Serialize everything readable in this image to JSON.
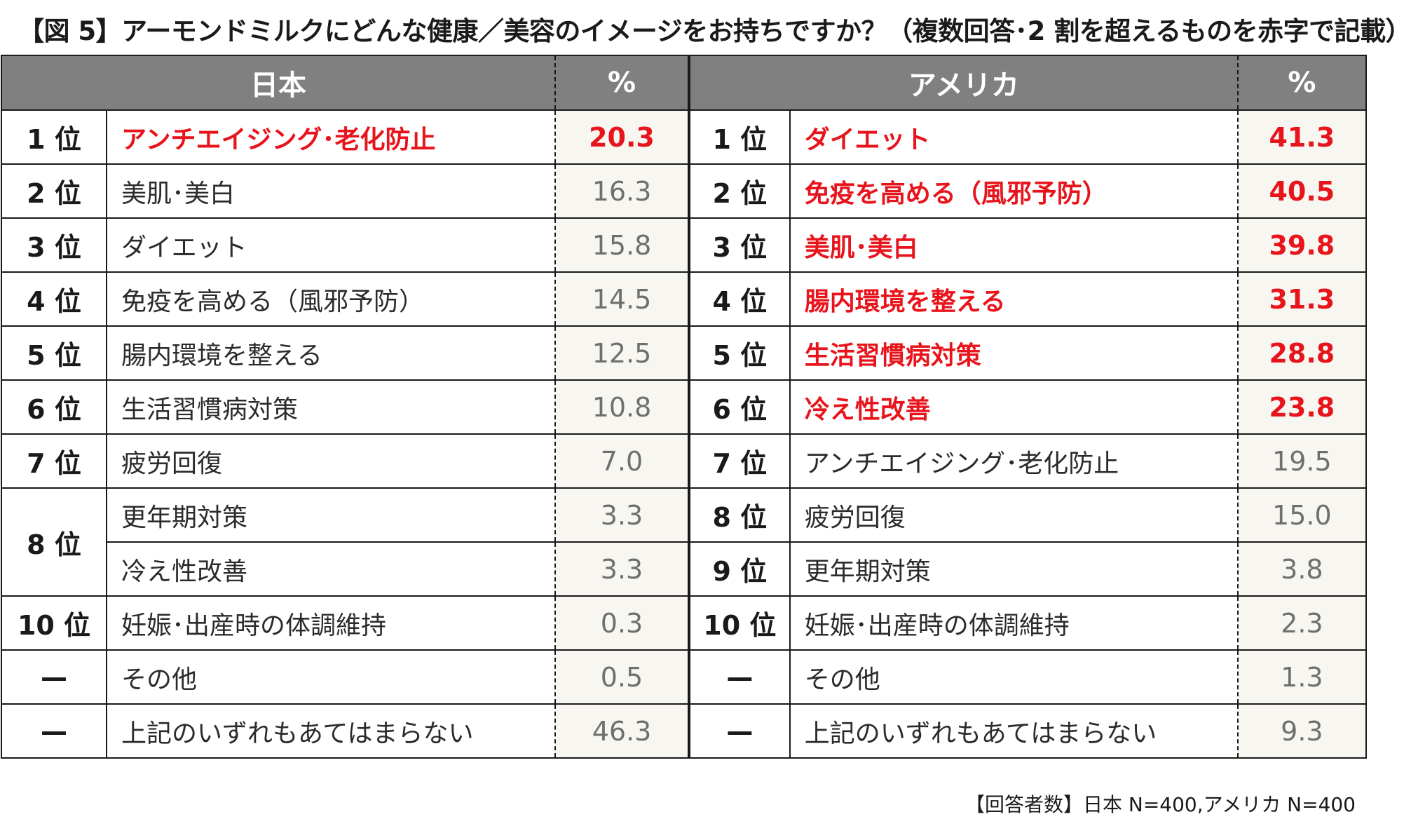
{
  "title": "【図 5】アーモンドミルクにどんな健康／美容のイメージをお持ちですか？（複数回答･2 割を超えるものを赤字で記載）",
  "note": "【回答者数】日本 N=400,アメリカ N=400",
  "colors": {
    "header_bg": "#808080",
    "highlight": "#e8141c",
    "value_bg": "#f8f6f0"
  },
  "chart_data": [
    {
      "type": "table",
      "header": "日本",
      "value_header": "%",
      "rows": [
        {
          "rank": "1 位",
          "item": "アンチエイジング･老化防止",
          "value": "20.3",
          "highlight": true
        },
        {
          "rank": "2 位",
          "item": "美肌･美白",
          "value": "16.3",
          "highlight": false
        },
        {
          "rank": "3 位",
          "item": "ダイエット",
          "value": "15.8",
          "highlight": false
        },
        {
          "rank": "4 位",
          "item": "免疫を高める（風邪予防）",
          "value": "14.5",
          "highlight": false
        },
        {
          "rank": "5 位",
          "item": "腸内環境を整える",
          "value": "12.5",
          "highlight": false
        },
        {
          "rank": "6 位",
          "item": "生活習慣病対策",
          "value": "10.8",
          "highlight": false
        },
        {
          "rank": "7 位",
          "item": "疲労回復",
          "value": "7.0",
          "highlight": false
        },
        {
          "rank": "8 位",
          "rank_span": 2,
          "item": "更年期対策",
          "value": "3.3",
          "highlight": false
        },
        {
          "item": "冷え性改善",
          "value": "3.3",
          "highlight": false
        },
        {
          "rank": "10 位",
          "item": "妊娠･出産時の体調維持",
          "value": "0.3",
          "highlight": false
        },
        {
          "rank": "—",
          "item": "その他",
          "value": "0.5",
          "highlight": false
        },
        {
          "rank": "—",
          "item": "上記のいずれもあてはまらない",
          "value": "46.3",
          "highlight": false
        }
      ]
    },
    {
      "type": "table",
      "header": "アメリカ",
      "value_header": "%",
      "rows": [
        {
          "rank": "1 位",
          "item": "ダイエット",
          "value": "41.3",
          "highlight": true
        },
        {
          "rank": "2 位",
          "item": "免疫を高める（風邪予防）",
          "value": "40.5",
          "highlight": true
        },
        {
          "rank": "3 位",
          "item": "美肌･美白",
          "value": "39.8",
          "highlight": true
        },
        {
          "rank": "4 位",
          "item": "腸内環境を整える",
          "value": "31.3",
          "highlight": true
        },
        {
          "rank": "5 位",
          "item": "生活習慣病対策",
          "value": "28.8",
          "highlight": true
        },
        {
          "rank": "6 位",
          "item": "冷え性改善",
          "value": "23.8",
          "highlight": true
        },
        {
          "rank": "7 位",
          "item": "アンチエイジング･老化防止",
          "value": "19.5",
          "highlight": false
        },
        {
          "rank": "8 位",
          "item": "疲労回復",
          "value": "15.0",
          "highlight": false
        },
        {
          "rank": "9 位",
          "item": "更年期対策",
          "value": "3.8",
          "highlight": false
        },
        {
          "rank": "10 位",
          "item": "妊娠･出産時の体調維持",
          "value": "2.3",
          "highlight": false
        },
        {
          "rank": "—",
          "item": "その他",
          "value": "1.3",
          "highlight": false
        },
        {
          "rank": "—",
          "item": "上記のいずれもあてはまらない",
          "value": "9.3",
          "highlight": false
        }
      ]
    }
  ]
}
